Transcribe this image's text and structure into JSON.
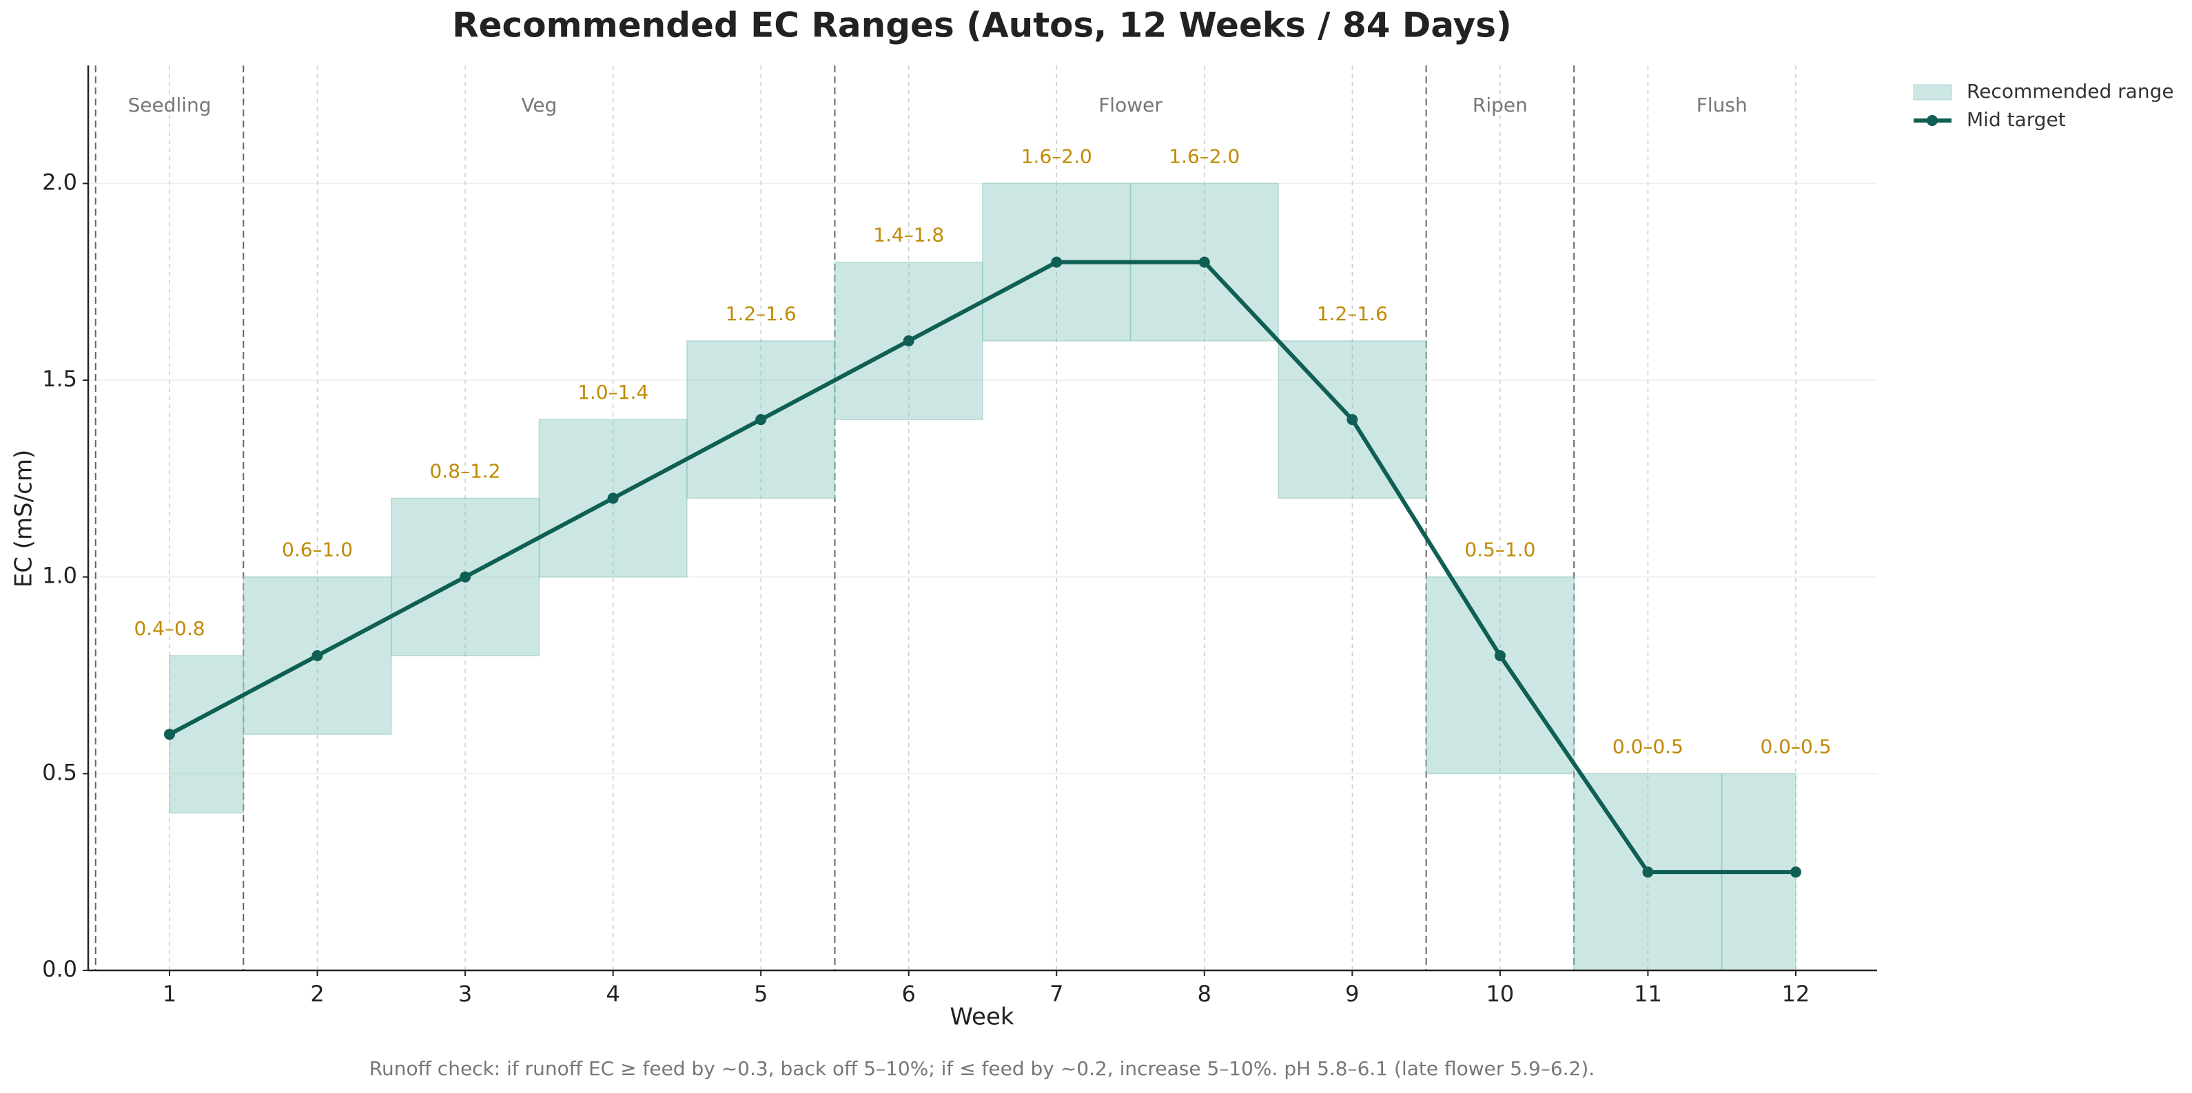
{
  "chart_data": {
    "type": "range_line",
    "title": "Recommended EC Ranges (Autos, 12 Weeks / 84 Days)",
    "x_label": "Week",
    "y_label": "EC (mS/cm)",
    "footnote": "Runoff check: if runoff EC ≥ feed by ~0.3, back off 5–10%; if ≤ feed by ~0.2, increase 5–10%. pH 5.8–6.1 (late flower 5.9–6.2).",
    "x": [
      1,
      2,
      3,
      4,
      5,
      6,
      7,
      8,
      9,
      10,
      11,
      12
    ],
    "xlim": [
      0.45,
      12.55
    ],
    "xticks": [
      1,
      2,
      3,
      4,
      5,
      6,
      7,
      8,
      9,
      10,
      11,
      12
    ],
    "ylim": [
      0,
      2.3
    ],
    "yticks": [
      {
        "value": 0,
        "label": "0.0"
      },
      0.5,
      {
        "value": 1,
        "label": "1.0"
      },
      1.5,
      {
        "value": 2,
        "label": "2.0"
      }
    ],
    "grid": true,
    "legend": "outside-top-right",
    "phases": [
      {
        "name": "Seedling",
        "start": 0.5,
        "end": 1.5
      },
      {
        "name": "Veg",
        "start": 1.5,
        "end": 5.5
      },
      {
        "name": "Flower",
        "start": 5.5,
        "end": 9.5
      },
      {
        "name": "Ripen",
        "start": 9.5,
        "end": 10.5
      },
      {
        "name": "Flush",
        "start": 10.5,
        "end": 12.5
      }
    ],
    "series": [
      {
        "name": "Recommended range",
        "color": "#7fc4b8",
        "low": [
          0.4,
          0.6,
          0.8,
          1.0,
          1.2,
          1.4,
          1.6,
          1.6,
          1.2,
          0.5,
          0.0,
          0.0
        ],
        "high": [
          0.8,
          1.0,
          1.2,
          1.4,
          1.6,
          1.8,
          2.0,
          2.0,
          1.6,
          1.0,
          0.5,
          0.5
        ],
        "value_labels": [
          "0.4–0.8",
          "0.6–1.0",
          "0.8–1.2",
          "1.0–1.4",
          "1.2–1.6",
          "1.4–1.8",
          "1.6–2.0",
          "1.6–2.0",
          "1.2–1.6",
          "0.5–1.0",
          "0.0–0.5",
          "0.0–0.5"
        ],
        "label_color": "#c08a00"
      },
      {
        "name": "Mid target",
        "color": "#0f5f55",
        "values": [
          0.6,
          0.8,
          1.0,
          1.2,
          1.4,
          1.6,
          1.8,
          1.8,
          1.4,
          0.8,
          0.25,
          0.25
        ]
      }
    ]
  }
}
